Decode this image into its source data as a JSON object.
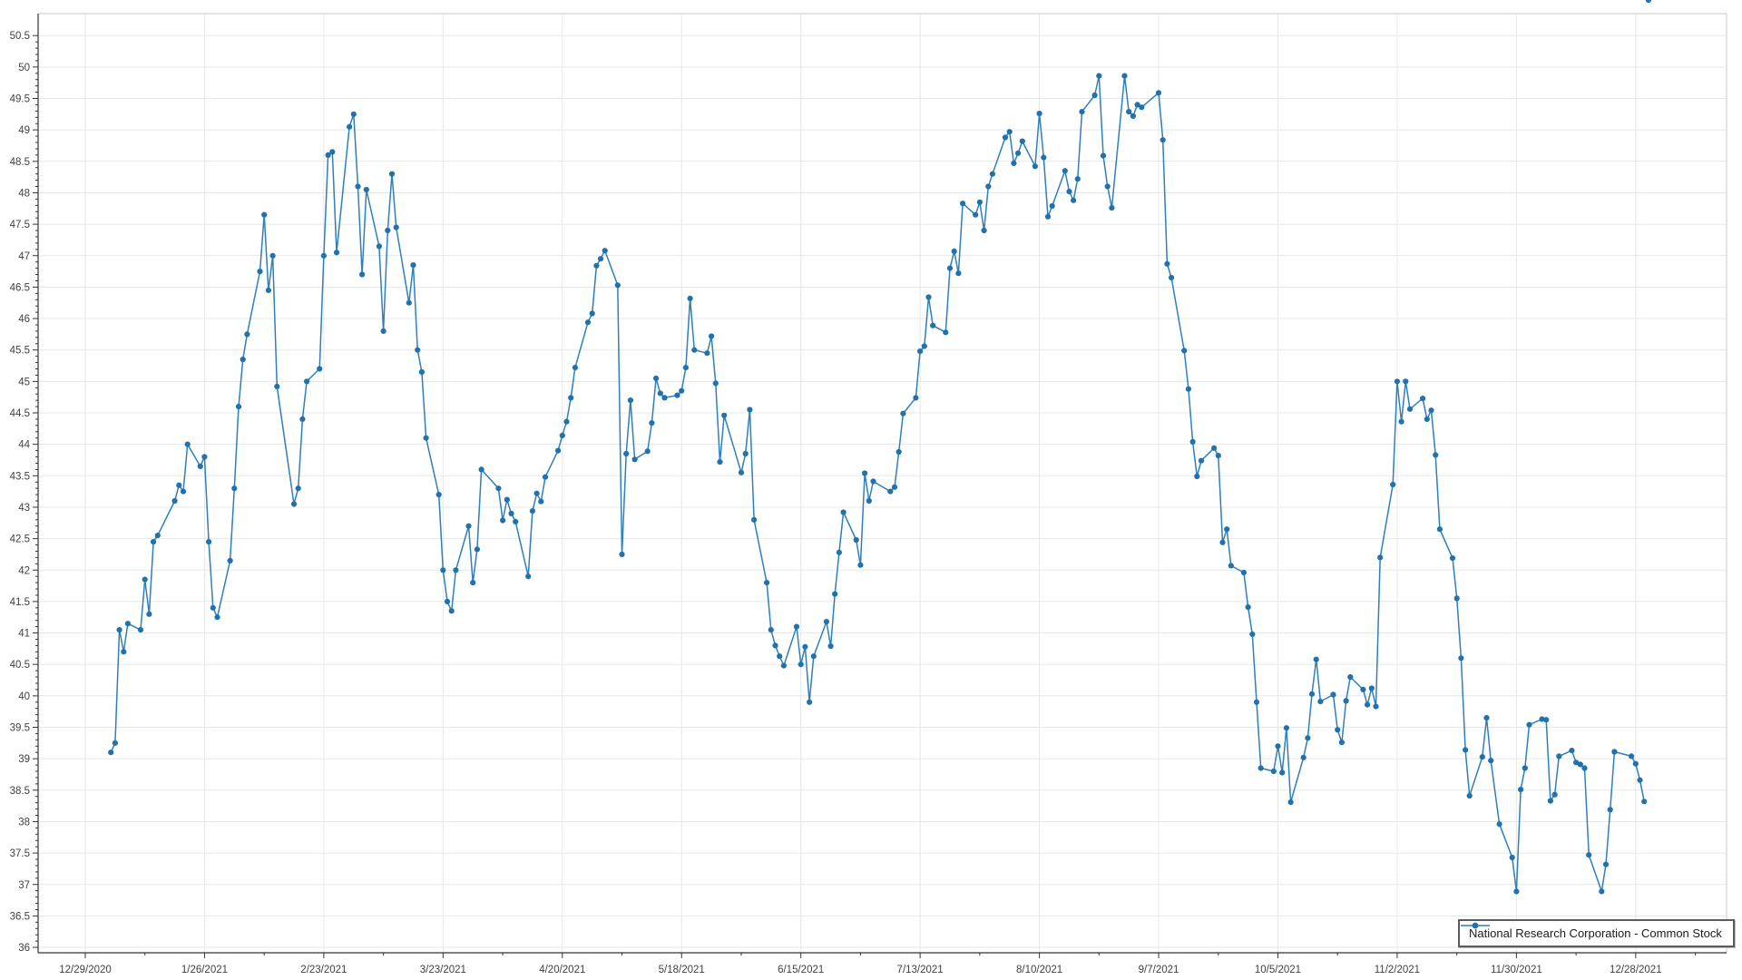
{
  "chart_data": {
    "type": "line",
    "title": "",
    "legend": {
      "position": "bottom-right",
      "label": "National Research Corporation - Common Stock"
    },
    "x_axis": {
      "epoch": "12/29/2020",
      "tick_interval_days": 28,
      "tick_labels": [
        "12/29/2020",
        "1/26/2021",
        "2/23/2021",
        "3/23/2021",
        "4/20/2021",
        "5/18/2021",
        "6/15/2021",
        "7/13/2021",
        "8/10/2021",
        "9/7/2021",
        "10/5/2021",
        "11/2/2021",
        "11/30/2021",
        "12/28/2021"
      ]
    },
    "y_axis": {
      "min": 36,
      "max": 50.5,
      "step": 0.5,
      "minor_step": 0.1
    },
    "grid": true,
    "series": [
      {
        "name": "National Research Corporation - Common Stock",
        "color": "#2577b5",
        "dates": [
          "1/4/2021",
          "1/5/2021",
          "1/6/2021",
          "1/7/2021",
          "1/8/2021",
          "1/11/2021",
          "1/12/2021",
          "1/13/2021",
          "1/14/2021",
          "1/15/2021",
          "1/19/2021",
          "1/20/2021",
          "1/21/2021",
          "1/22/2021",
          "1/25/2021",
          "1/26/2021",
          "1/27/2021",
          "1/28/2021",
          "1/29/2021",
          "2/1/2021",
          "2/2/2021",
          "2/3/2021",
          "2/4/2021",
          "2/5/2021",
          "2/8/2021",
          "2/9/2021",
          "2/10/2021",
          "2/11/2021",
          "2/12/2021",
          "2/16/2021",
          "2/17/2021",
          "2/18/2021",
          "2/19/2021",
          "2/22/2021",
          "2/23/2021",
          "2/24/2021",
          "2/25/2021",
          "2/26/2021",
          "3/1/2021",
          "3/2/2021",
          "3/3/2021",
          "3/4/2021",
          "3/5/2021",
          "3/8/2021",
          "3/9/2021",
          "3/10/2021",
          "3/11/2021",
          "3/12/2021",
          "3/15/2021",
          "3/16/2021",
          "3/17/2021",
          "3/18/2021",
          "3/19/2021",
          "3/22/2021",
          "3/23/2021",
          "3/24/2021",
          "3/25/2021",
          "3/26/2021",
          "3/29/2021",
          "3/30/2021",
          "3/31/2021",
          "4/1/2021",
          "4/5/2021",
          "4/6/2021",
          "4/7/2021",
          "4/8/2021",
          "4/9/2021",
          "4/12/2021",
          "4/13/2021",
          "4/14/2021",
          "4/15/2021",
          "4/16/2021",
          "4/19/2021",
          "4/20/2021",
          "4/21/2021",
          "4/22/2021",
          "4/23/2021",
          "4/26/2021",
          "4/27/2021",
          "4/28/2021",
          "4/29/2021",
          "4/30/2021",
          "5/3/2021",
          "5/4/2021",
          "5/5/2021",
          "5/6/2021",
          "5/7/2021",
          "5/10/2021",
          "5/11/2021",
          "5/12/2021",
          "5/13/2021",
          "5/14/2021",
          "5/17/2021",
          "5/18/2021",
          "5/19/2021",
          "5/20/2021",
          "5/21/2021",
          "5/24/2021",
          "5/25/2021",
          "5/26/2021",
          "5/27/2021",
          "5/28/2021",
          "6/1/2021",
          "6/2/2021",
          "6/3/2021",
          "6/4/2021",
          "6/7/2021",
          "6/8/2021",
          "6/9/2021",
          "6/10/2021",
          "6/11/2021",
          "6/14/2021",
          "6/15/2021",
          "6/16/2021",
          "6/17/2021",
          "6/18/2021",
          "6/21/2021",
          "6/22/2021",
          "6/23/2021",
          "6/24/2021",
          "6/25/2021",
          "6/28/2021",
          "6/29/2021",
          "6/30/2021",
          "7/1/2021",
          "7/2/2021",
          "7/6/2021",
          "7/7/2021",
          "7/8/2021",
          "7/9/2021",
          "7/12/2021",
          "7/13/2021",
          "7/14/2021",
          "7/15/2021",
          "7/16/2021",
          "7/19/2021",
          "7/20/2021",
          "7/21/2021",
          "7/22/2021",
          "7/23/2021",
          "7/26/2021",
          "7/27/2021",
          "7/28/2021",
          "7/29/2021",
          "7/30/2021",
          "8/2/2021",
          "8/3/2021",
          "8/4/2021",
          "8/5/2021",
          "8/6/2021",
          "8/9/2021",
          "8/10/2021",
          "8/11/2021",
          "8/12/2021",
          "8/13/2021",
          "8/16/2021",
          "8/17/2021",
          "8/18/2021",
          "8/19/2021",
          "8/20/2021",
          "8/23/2021",
          "8/24/2021",
          "8/25/2021",
          "8/26/2021",
          "8/27/2021",
          "8/30/2021",
          "8/31/2021",
          "9/1/2021",
          "9/2/2021",
          "9/3/2021",
          "9/7/2021",
          "9/8/2021",
          "9/9/2021",
          "9/10/2021",
          "9/13/2021",
          "9/14/2021",
          "9/15/2021",
          "9/16/2021",
          "9/17/2021",
          "9/20/2021",
          "9/21/2021",
          "9/22/2021",
          "9/23/2021",
          "9/24/2021",
          "9/27/2021",
          "9/28/2021",
          "9/29/2021",
          "9/30/2021",
          "10/1/2021",
          "10/4/2021",
          "10/5/2021",
          "10/6/2021",
          "10/7/2021",
          "10/8/2021",
          "10/11/2021",
          "10/12/2021",
          "10/13/2021",
          "10/14/2021",
          "10/15/2021",
          "10/18/2021",
          "10/19/2021",
          "10/20/2021",
          "10/21/2021",
          "10/22/2021",
          "10/25/2021",
          "10/26/2021",
          "10/27/2021",
          "10/28/2021",
          "10/29/2021",
          "11/1/2021",
          "11/2/2021",
          "11/3/2021",
          "11/4/2021",
          "11/5/2021",
          "11/8/2021",
          "11/9/2021",
          "11/10/2021",
          "11/11/2021",
          "11/12/2021",
          "11/15/2021",
          "11/16/2021",
          "11/17/2021",
          "11/18/2021",
          "11/19/2021",
          "11/22/2021",
          "11/23/2021",
          "11/24/2021",
          "11/26/2021",
          "11/29/2021",
          "11/30/2021",
          "12/1/2021",
          "12/2/2021",
          "12/3/2021",
          "12/6/2021",
          "12/7/2021",
          "12/8/2021",
          "12/9/2021",
          "12/10/2021",
          "12/13/2021",
          "12/14/2021",
          "12/15/2021",
          "12/16/2021",
          "12/17/2021",
          "12/20/2021",
          "12/21/2021",
          "12/22/2021",
          "12/23/2021",
          "12/27/2021",
          "12/28/2021",
          "12/29/2021",
          "12/30/2021",
          "12/31/2021"
        ],
        "values": [
          39.1,
          39.25,
          41.05,
          40.7,
          41.15,
          41.05,
          41.85,
          41.3,
          42.45,
          42.55,
          43.1,
          43.35,
          43.25,
          44.0,
          43.65,
          43.8,
          42.45,
          41.4,
          41.25,
          42.15,
          43.3,
          44.6,
          45.35,
          45.75,
          46.75,
          47.65,
          46.45,
          47.0,
          44.92,
          43.05,
          43.3,
          44.4,
          45.0,
          45.2,
          47.0,
          48.6,
          48.65,
          47.05,
          49.05,
          49.25,
          48.1,
          46.7,
          48.05,
          47.15,
          45.8,
          47.4,
          48.3,
          47.45,
          46.25,
          46.85,
          45.5,
          45.15,
          44.1,
          43.2,
          42.0,
          41.5,
          41.35,
          42.0,
          42.7,
          41.8,
          42.33,
          43.6,
          43.3,
          42.79,
          43.12,
          42.9,
          42.77,
          41.9,
          42.94,
          43.22,
          43.09,
          43.48,
          43.9,
          44.14,
          44.36,
          44.74,
          45.22,
          45.94,
          46.08,
          46.84,
          46.95,
          47.08,
          46.53,
          42.25,
          43.85,
          44.7,
          43.76,
          43.89,
          44.34,
          45.05,
          44.81,
          44.74,
          44.78,
          44.85,
          45.22,
          46.32,
          45.5,
          45.45,
          45.72,
          44.97,
          43.72,
          44.46,
          43.55,
          43.85,
          44.55,
          42.8,
          41.8,
          41.05,
          40.8,
          40.63,
          40.48,
          41.1,
          40.5,
          40.78,
          39.9,
          40.63,
          41.18,
          40.79,
          41.62,
          42.28,
          42.92,
          42.48,
          42.08,
          43.54,
          43.1,
          43.41,
          43.25,
          43.32,
          43.88,
          44.49,
          44.74,
          45.48,
          45.56,
          46.34,
          45.89,
          45.78,
          46.8,
          47.07,
          46.72,
          47.83,
          47.65,
          47.85,
          47.4,
          48.1,
          48.3,
          48.88,
          48.97,
          48.47,
          48.63,
          48.82,
          48.42,
          49.26,
          48.56,
          47.62,
          47.79,
          48.35,
          48.02,
          47.88,
          48.22,
          49.29,
          49.55,
          49.86,
          48.59,
          48.1,
          47.76,
          49.86,
          49.29,
          49.22,
          49.4,
          49.36,
          49.59,
          48.84,
          46.87,
          46.65,
          45.49,
          44.88,
          44.04,
          43.49,
          43.74,
          43.94,
          43.82,
          42.44,
          42.65,
          42.07,
          41.96,
          41.41,
          40.98,
          39.9,
          38.85,
          38.8,
          39.2,
          38.78,
          39.49,
          38.31,
          39.02,
          39.33,
          40.03,
          40.58,
          39.91,
          40.02,
          39.46,
          39.26,
          39.92,
          40.3,
          40.1,
          39.86,
          40.12,
          39.83,
          42.2,
          43.36,
          45.0,
          44.36,
          45.0,
          44.56,
          44.73,
          44.4,
          44.54,
          43.83,
          42.65,
          42.19,
          41.55,
          40.6,
          39.14,
          38.41,
          39.03,
          39.65,
          38.97,
          37.96,
          37.43,
          36.89,
          38.51,
          38.85,
          39.54,
          39.63,
          39.62,
          38.33,
          38.43,
          39.04,
          39.13,
          38.94,
          38.91,
          38.85,
          37.47,
          36.89,
          37.32,
          38.19,
          39.11,
          39.04,
          38.92,
          38.66,
          38.32
        ]
      }
    ],
    "style": {
      "line_color": "#2e7fba",
      "marker_color": "#2171ab",
      "grid_color": "#e7e7e7",
      "axis_color": "#333333",
      "frame_color": "#c9c9c9",
      "label_color": "#404040"
    }
  }
}
